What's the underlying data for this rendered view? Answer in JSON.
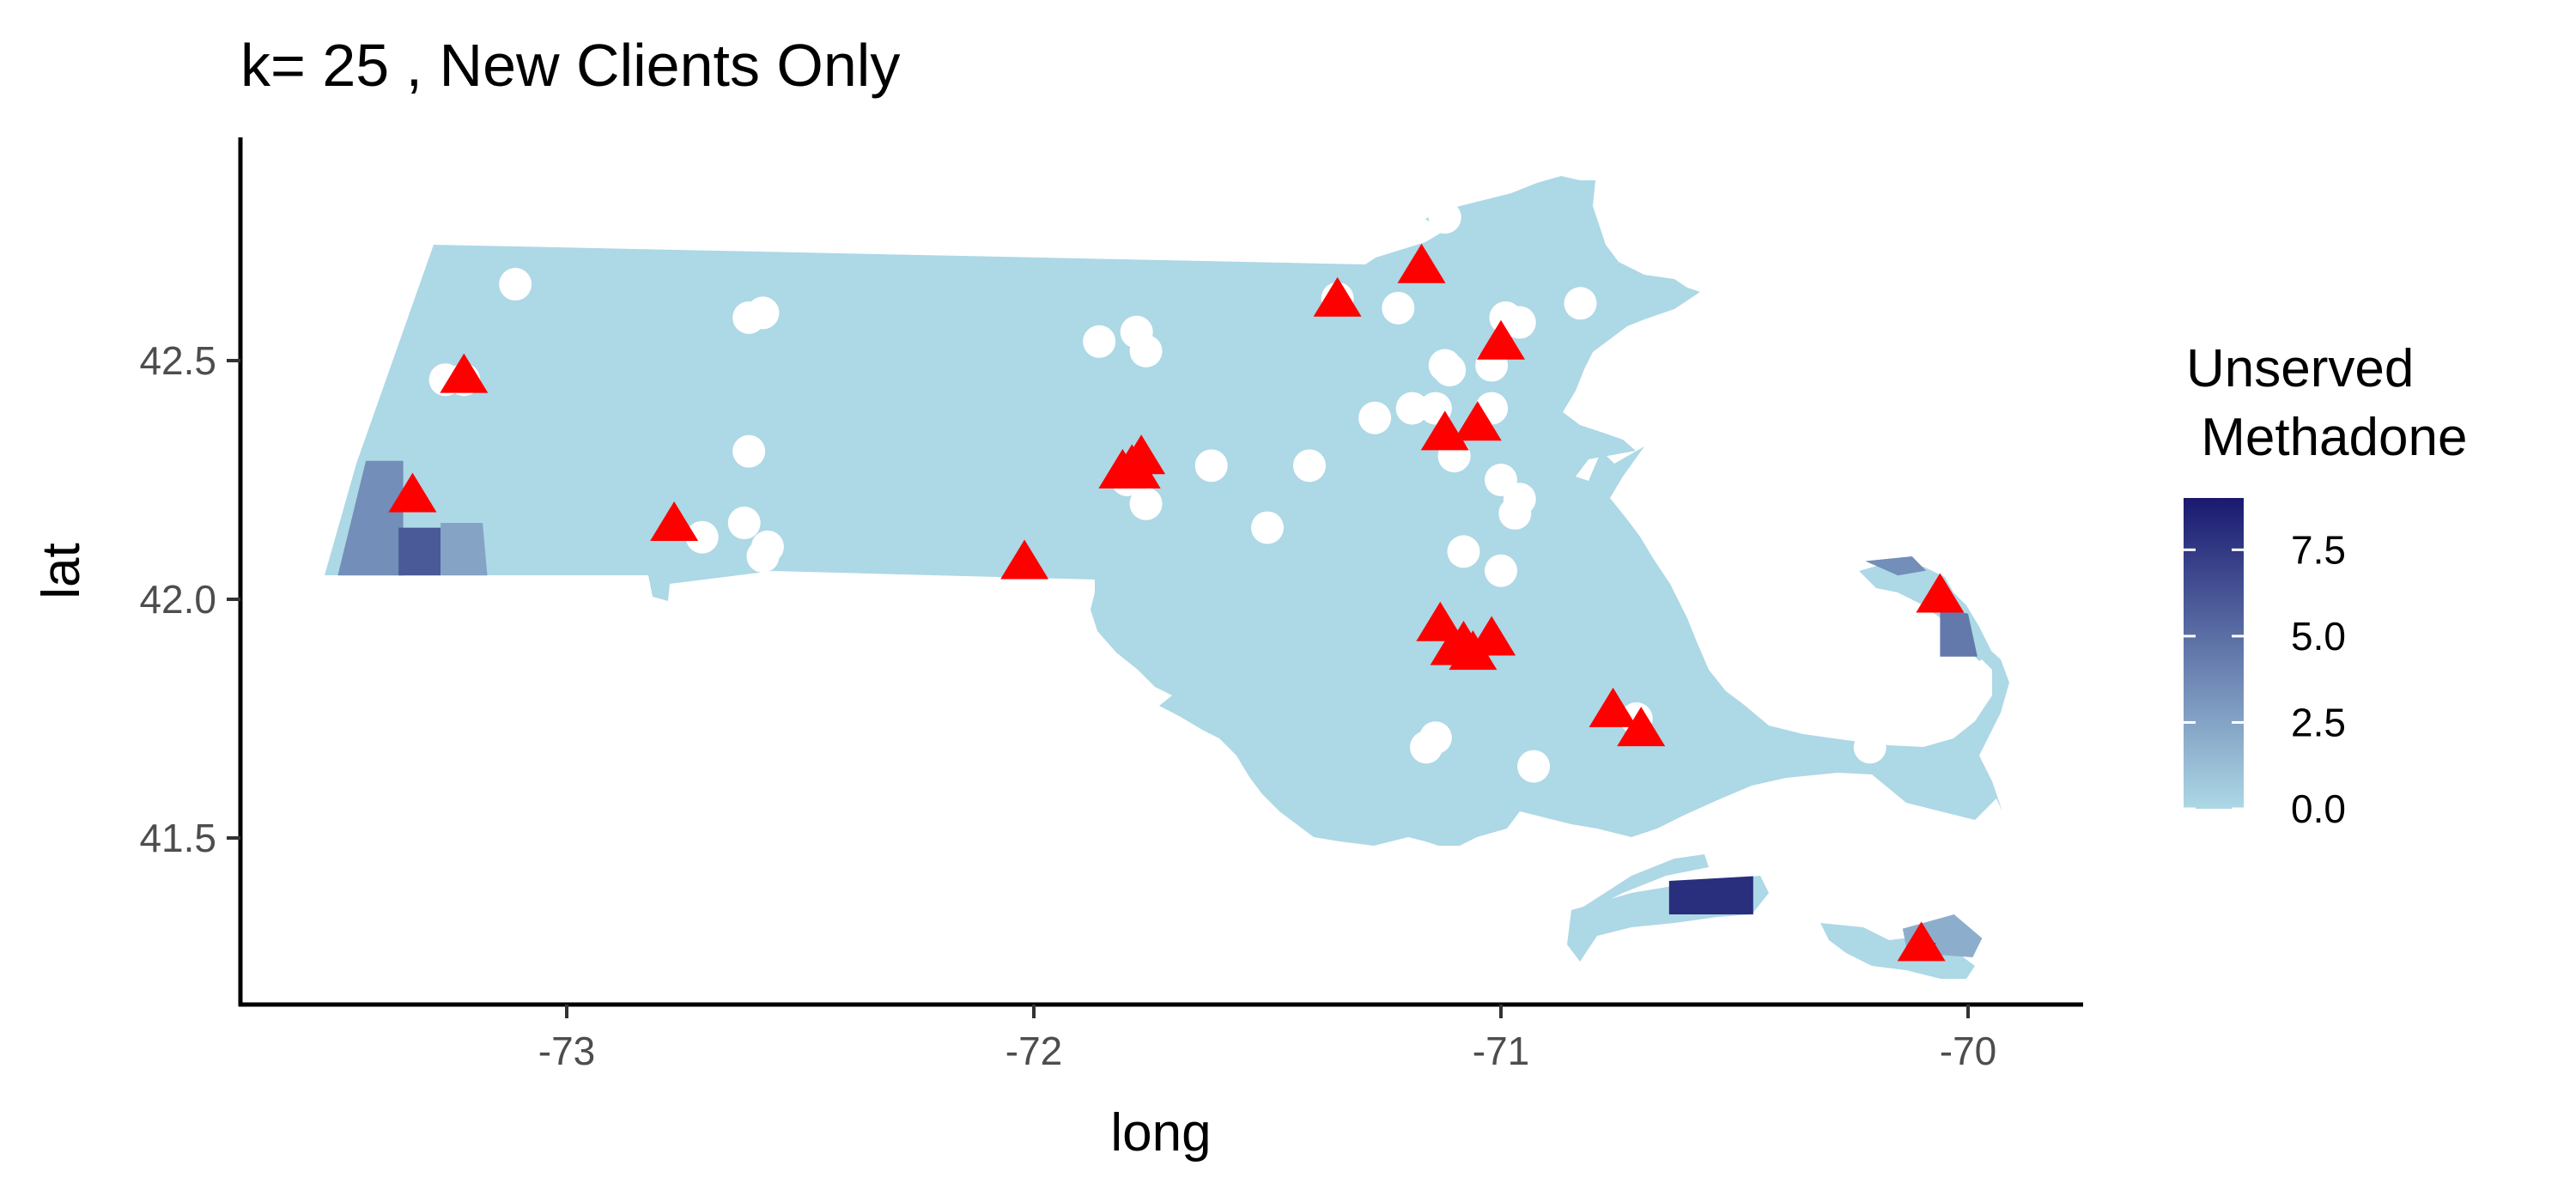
{
  "chart_data": {
    "type": "scatter",
    "title": "k= 25 , New Clients Only",
    "xlabel": "long",
    "ylabel": "lat",
    "xlim": [
      -73.7,
      -69.8
    ],
    "ylim": [
      41.16,
      42.94
    ],
    "x_ticks": [
      -73,
      -72,
      -71,
      -70
    ],
    "x_tick_labels": [
      "-73",
      "-72",
      "-71",
      "-70"
    ],
    "y_ticks": [
      41.5,
      42.0,
      42.5
    ],
    "y_tick_labels": [
      "41.5",
      "42.0",
      "42.5"
    ],
    "grid": false,
    "legend": {
      "title_line1": "Unserved",
      "title_line2": " Methadone",
      "placement": "right",
      "range": [
        0,
        9
      ],
      "low_color": "#add8e6",
      "high_color": "#191970",
      "ticks": [
        0,
        2.5,
        5,
        7.5
      ],
      "tick_labels": [
        "0.0",
        "2.5",
        "5.0",
        "7.5"
      ]
    },
    "base_color": "#add8e6",
    "shaded_regions": [
      {
        "region": "west-tip-1",
        "value": 3.5,
        "pts": [
          [
            -73.43,
            42.29
          ],
          [
            -73.35,
            42.29
          ],
          [
            -73.35,
            42.05
          ],
          [
            -73.49,
            42.05
          ]
        ]
      },
      {
        "region": "west-tip-2",
        "value": 6.0,
        "pts": [
          [
            -73.36,
            42.15
          ],
          [
            -73.27,
            42.15
          ],
          [
            -73.27,
            42.05
          ],
          [
            -73.36,
            42.05
          ]
        ]
      },
      {
        "region": "west-tip-3",
        "value": 2.5,
        "pts": [
          [
            -73.27,
            42.16
          ],
          [
            -73.18,
            42.16
          ],
          [
            -73.17,
            42.05
          ],
          [
            -73.27,
            42.05
          ]
        ]
      },
      {
        "region": "cape-tip",
        "value": 4.5,
        "pts": [
          [
            -70.06,
            41.98
          ],
          [
            -70.0,
            41.97
          ],
          [
            -69.98,
            41.88
          ],
          [
            -70.06,
            41.88
          ]
        ]
      },
      {
        "region": "cape-north",
        "value": 3.5,
        "pts": [
          [
            -70.22,
            42.08
          ],
          [
            -70.12,
            42.09
          ],
          [
            -70.09,
            42.06
          ],
          [
            -70.15,
            42.05
          ]
        ]
      },
      {
        "region": "marthas-vineyard-east",
        "value": 8.0,
        "pts": [
          [
            -70.64,
            41.41
          ],
          [
            -70.46,
            41.42
          ],
          [
            -70.46,
            41.34
          ],
          [
            -70.64,
            41.34
          ]
        ]
      },
      {
        "region": "nantucket-main",
        "value": 2.0,
        "pts": [
          [
            -70.14,
            41.31
          ],
          [
            -70.03,
            41.34
          ],
          [
            -69.97,
            41.29
          ],
          [
            -69.99,
            41.25
          ],
          [
            -70.13,
            41.26
          ]
        ]
      },
      {
        "region": "nantucket-west",
        "value": 9.0,
        "pts": [
          [
            -70.12,
            41.28
          ],
          [
            -70.07,
            41.28
          ],
          [
            -70.07,
            41.25
          ],
          [
            -70.12,
            41.25
          ]
        ]
      }
    ],
    "series": [
      {
        "marker": "circle",
        "color": "#ffffff",
        "points": [
          [
            -73.11,
            42.66
          ],
          [
            -73.26,
            42.46
          ],
          [
            -73.22,
            42.46
          ],
          [
            -72.61,
            42.59
          ],
          [
            -72.58,
            42.6
          ],
          [
            -72.61,
            42.31
          ],
          [
            -72.62,
            42.16
          ],
          [
            -72.57,
            42.11
          ],
          [
            -72.58,
            42.09
          ],
          [
            -72.71,
            42.13
          ],
          [
            -71.86,
            42.54
          ],
          [
            -71.78,
            42.56
          ],
          [
            -71.76,
            42.52
          ],
          [
            -71.8,
            42.25
          ],
          [
            -71.76,
            42.2
          ],
          [
            -71.62,
            42.28
          ],
          [
            -71.41,
            42.28
          ],
          [
            -71.5,
            42.15
          ],
          [
            -71.35,
            42.63
          ],
          [
            -71.22,
            42.61
          ],
          [
            -71.12,
            42.8
          ],
          [
            -71.12,
            42.49
          ],
          [
            -71.27,
            42.38
          ],
          [
            -71.19,
            42.4
          ],
          [
            -71.14,
            42.4
          ],
          [
            -71.02,
            42.49
          ],
          [
            -70.99,
            42.59
          ],
          [
            -70.96,
            42.58
          ],
          [
            -70.83,
            42.62
          ],
          [
            -71.02,
            42.4
          ],
          [
            -71.1,
            42.3
          ],
          [
            -71.0,
            42.25
          ],
          [
            -70.96,
            42.21
          ],
          [
            -70.97,
            42.18
          ],
          [
            -71.08,
            42.1
          ],
          [
            -71.0,
            42.06
          ],
          [
            -71.14,
            41.71
          ],
          [
            -71.16,
            41.69
          ],
          [
            -70.93,
            41.65
          ],
          [
            -70.71,
            41.75
          ],
          [
            -70.21,
            41.69
          ],
          [
            -71.11,
            42.48
          ]
        ]
      },
      {
        "marker": "triangle",
        "color": "#ff0000",
        "points": [
          [
            -73.22,
            42.47
          ],
          [
            -73.33,
            42.22
          ],
          [
            -72.77,
            42.16
          ],
          [
            -72.02,
            42.08
          ],
          [
            -71.81,
            42.27
          ],
          [
            -71.79,
            42.28
          ],
          [
            -71.77,
            42.3
          ],
          [
            -71.78,
            42.27
          ],
          [
            -71.35,
            42.63
          ],
          [
            -71.17,
            42.7
          ],
          [
            -71.0,
            42.54
          ],
          [
            -71.12,
            42.35
          ],
          [
            -71.05,
            42.37
          ],
          [
            -71.13,
            41.95
          ],
          [
            -71.1,
            41.9
          ],
          [
            -71.08,
            41.91
          ],
          [
            -71.06,
            41.89
          ],
          [
            -71.02,
            41.92
          ],
          [
            -70.76,
            41.77
          ],
          [
            -70.7,
            41.73
          ],
          [
            -70.06,
            42.01
          ],
          [
            -70.1,
            41.28
          ]
        ]
      }
    ]
  }
}
